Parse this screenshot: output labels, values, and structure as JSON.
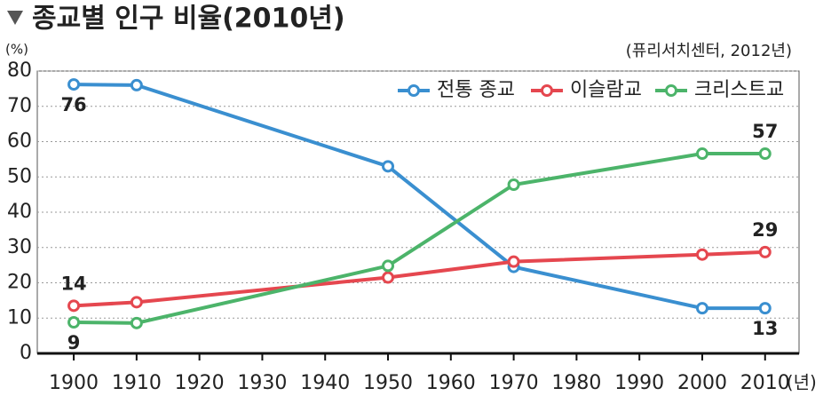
{
  "chart_data": {
    "type": "line",
    "title": "종교별 인구 비율(2010년)",
    "source": "(퓨리서치센터, 2012년)",
    "y_unit": "(%)",
    "x_unit": "(년)",
    "x": [
      1900,
      1910,
      1950,
      1970,
      2000,
      2010
    ],
    "series": [
      {
        "name": "전통 종교",
        "color": "#3a8fd0",
        "values": [
          76.2,
          76,
          53,
          24.5,
          12.8,
          12.8
        ],
        "value_labels": [
          "76",
          null,
          null,
          null,
          null,
          "13"
        ]
      },
      {
        "name": "이슬람교",
        "color": "#e5474f",
        "values": [
          13.5,
          14.5,
          21.5,
          26,
          28,
          28.7
        ],
        "value_labels": [
          "14",
          null,
          null,
          null,
          null,
          "29"
        ]
      },
      {
        "name": "크리스트교",
        "color": "#4cb46a",
        "values": [
          8.8,
          8.6,
          24.8,
          47.8,
          56.6,
          56.6
        ],
        "value_labels": [
          "9",
          null,
          null,
          null,
          null,
          "57"
        ]
      }
    ],
    "xlim": [
      1894.2,
      2015.4
    ],
    "xticks": [
      1900,
      1910,
      1920,
      1930,
      1940,
      1950,
      1960,
      1970,
      1980,
      1990,
      2000,
      2010
    ],
    "ylim": [
      0,
      80
    ],
    "yticks": [
      0,
      10,
      20,
      30,
      40,
      50,
      60,
      70,
      80
    ],
    "grid": true,
    "legend": "top-right"
  }
}
